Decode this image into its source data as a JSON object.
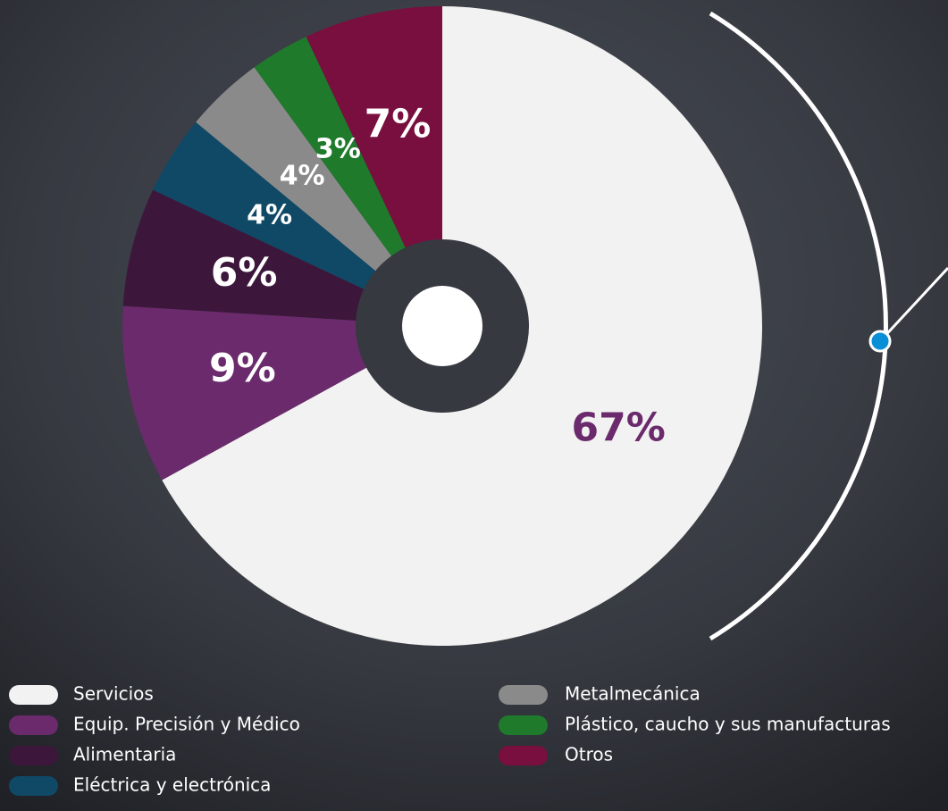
{
  "chart_data": {
    "type": "pie",
    "categories": [
      "Servicios",
      "Equip. Precisión y Médico",
      "Alimentaria",
      "Eléctrica y electrónica",
      "Metalmecánica",
      "Plástico, caucho y sus manufacturas",
      "Otros"
    ],
    "values": [
      67,
      9,
      6,
      4,
      4,
      3,
      7
    ],
    "value_labels": [
      "67%",
      "9%",
      "6%",
      "4%",
      "4%",
      "3%",
      "7%"
    ],
    "colors": [
      "#f2f2f2",
      "#6a2a6c",
      "#3c173b",
      "#0f4966",
      "#8a8a8a",
      "#1f7a2c",
      "#780f3e"
    ]
  }
}
